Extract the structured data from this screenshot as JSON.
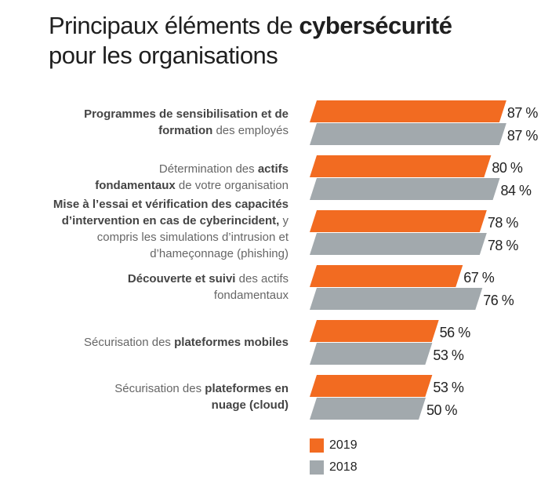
{
  "title": {
    "lines": [
      [
        {
          "text": "Principaux éléments de ",
          "bold": false
        },
        {
          "text": "cybersécurité",
          "bold": true
        }
      ],
      [
        {
          "text": "pour les organisations",
          "bold": false
        }
      ]
    ]
  },
  "colors": {
    "2019": "#f26b21",
    "2018": "#a2a9ad"
  },
  "chart_data": {
    "type": "bar",
    "orientation": "horizontal",
    "unit": "%",
    "categories": [
      [
        [
          {
            "text": "Programmes de sensibilisation et de",
            "bold": true
          }
        ],
        [
          {
            "text": "formation",
            "bold": true
          },
          {
            "text": " des employés",
            "bold": false
          }
        ]
      ],
      [
        [
          {
            "text": "Détermination des ",
            "bold": false
          },
          {
            "text": "actifs",
            "bold": true
          }
        ],
        [
          {
            "text": "fondamentaux",
            "bold": true
          },
          {
            "text": " de votre organisation",
            "bold": false
          }
        ]
      ],
      [
        [
          {
            "text": "Mise à l’essai et vérification des capacités",
            "bold": true
          }
        ],
        [
          {
            "text": "d’intervention en cas de cyberincident,",
            "bold": true
          },
          {
            "text": " y",
            "bold": false
          }
        ],
        [
          {
            "text": "compris les simulations d’intrusion et",
            "bold": false
          }
        ],
        [
          {
            "text": "d’hameçonnage (phishing)",
            "bold": false
          }
        ]
      ],
      [
        [
          {
            "text": "Découverte et suivi",
            "bold": true
          },
          {
            "text": " des actifs",
            "bold": false
          }
        ],
        [
          {
            "text": "fondamentaux",
            "bold": false
          }
        ]
      ],
      [
        [
          {
            "text": "Sécurisation des ",
            "bold": false
          },
          {
            "text": "plateformes mobiles",
            "bold": true
          }
        ]
      ],
      [
        [
          {
            "text": "Sécurisation des ",
            "bold": false
          },
          {
            "text": "plateformes en",
            "bold": true
          }
        ],
        [
          {
            "text": "nuage (cloud)",
            "bold": true
          }
        ]
      ]
    ],
    "series": [
      {
        "name": "2019",
        "values": [
          87,
          80,
          78,
          67,
          56,
          53
        ],
        "labels": [
          "87 %",
          "80 %",
          "78 %",
          "67 %",
          "56 %",
          "53 %"
        ]
      },
      {
        "name": "2018",
        "values": [
          87,
          84,
          78,
          76,
          53,
          50
        ],
        "labels": [
          "87 %",
          "84 %",
          "78 %",
          "76 %",
          "53 %",
          "50 %"
        ]
      }
    ],
    "xlim": [
      0,
      100
    ],
    "grid": false,
    "legend": "bottom"
  }
}
